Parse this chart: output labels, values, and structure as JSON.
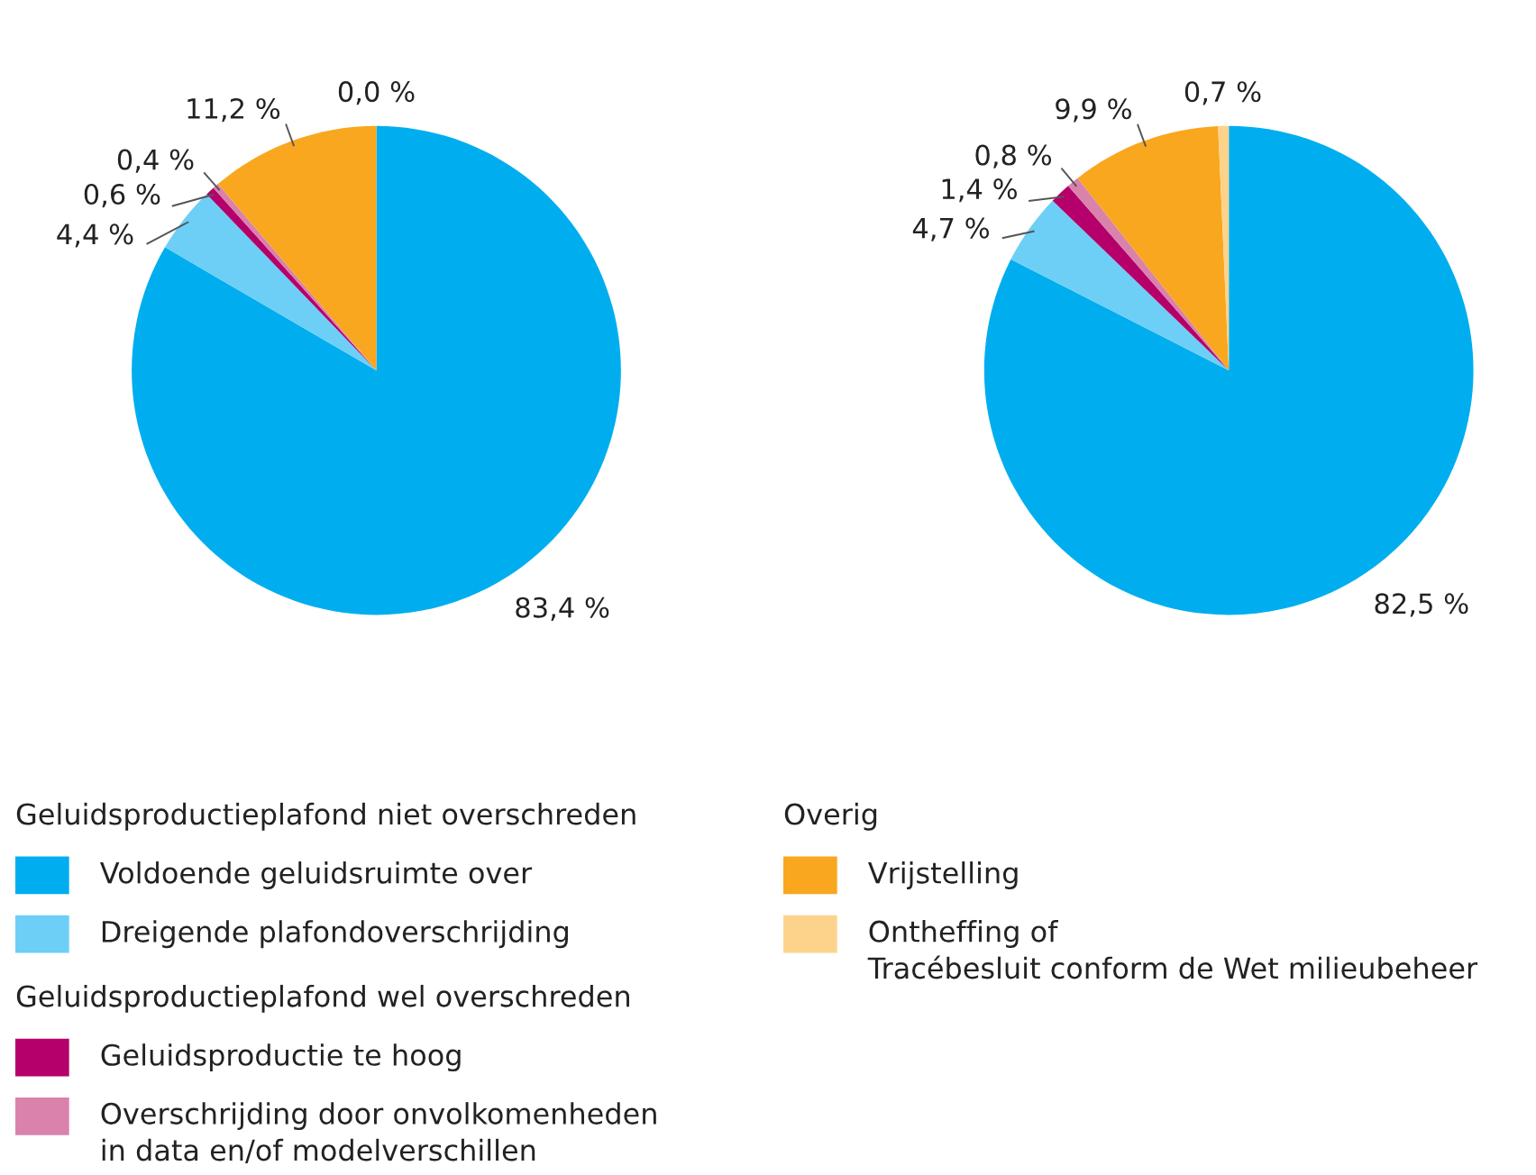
{
  "chart_data": [
    {
      "type": "pie",
      "categories": [
        "Voldoende geluidsruimte over",
        "Dreigende plafondoverschrijding",
        "Geluidsproductie te hoog",
        "Overschrijding door onvolkomenheden in data en/of modelverschillen",
        "Vrijstelling",
        "Ontheffing of\nTracébesluit conform de Wet milieubeheer"
      ],
      "values": [
        83.4,
        4.4,
        0.6,
        0.4,
        11.2,
        0.0
      ],
      "colors": [
        "#00aeef",
        "#6dcff6",
        "#b5006b",
        "#d982ab",
        "#f9a71e",
        "#fdd38c"
      ],
      "value_labels": [
        "83,4 %",
        "4,4 %",
        "0,6 %",
        "0,4 %",
        "11,2 %",
        "0,0 %"
      ],
      "legend": "bottom",
      "annotations": [
        "Geluidsproductieplafond niet overschreden",
        "Geluidsproductieplafond wel overschreden",
        "Overig"
      ]
    },
    {
      "type": "pie",
      "categories": [
        null,
        null,
        null,
        null,
        null,
        null
      ],
      "values": [
        82.5,
        4.7,
        1.4,
        0.8,
        9.9,
        0.7
      ],
      "colors": [
        "#00aeef",
        "#6dcff6",
        "#b5006b",
        "#d982ab",
        "#f9a71e",
        "#fdd38c"
      ],
      "value_labels": [
        "82,5 %",
        "4,7 %",
        "1,4 %",
        "0,8 %",
        "9,9 %",
        "0,7 %"
      ]
    }
  ]
}
